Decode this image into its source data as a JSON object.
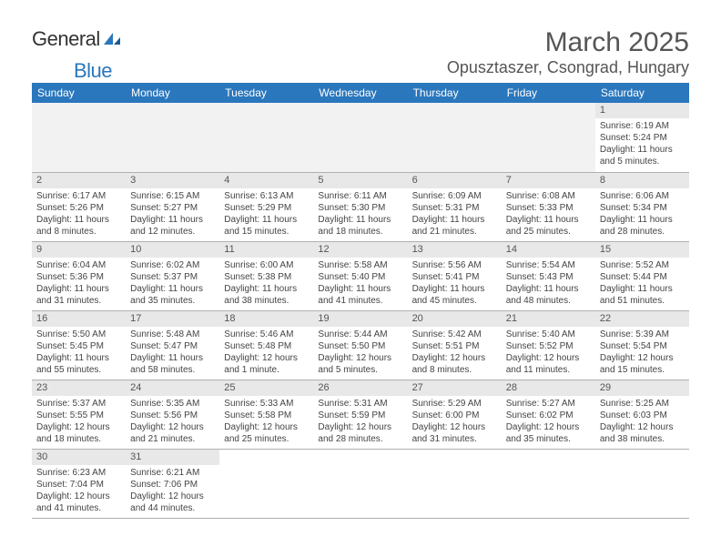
{
  "brand_general": "General",
  "brand_blue": "Blue",
  "title": "March 2025",
  "location": "Opusztaszer, Csongrad, Hungary",
  "header_bg": "#2a77bd",
  "weekdays": [
    "Sunday",
    "Monday",
    "Tuesday",
    "Wednesday",
    "Thursday",
    "Friday",
    "Saturday"
  ],
  "rows": [
    [
      null,
      null,
      null,
      null,
      null,
      null,
      {
        "n": "1",
        "sr": "Sunrise: 6:19 AM",
        "ss": "Sunset: 5:24 PM",
        "dl": "Daylight: 11 hours and 5 minutes."
      }
    ],
    [
      {
        "n": "2",
        "sr": "Sunrise: 6:17 AM",
        "ss": "Sunset: 5:26 PM",
        "dl": "Daylight: 11 hours and 8 minutes."
      },
      {
        "n": "3",
        "sr": "Sunrise: 6:15 AM",
        "ss": "Sunset: 5:27 PM",
        "dl": "Daylight: 11 hours and 12 minutes."
      },
      {
        "n": "4",
        "sr": "Sunrise: 6:13 AM",
        "ss": "Sunset: 5:29 PM",
        "dl": "Daylight: 11 hours and 15 minutes."
      },
      {
        "n": "5",
        "sr": "Sunrise: 6:11 AM",
        "ss": "Sunset: 5:30 PM",
        "dl": "Daylight: 11 hours and 18 minutes."
      },
      {
        "n": "6",
        "sr": "Sunrise: 6:09 AM",
        "ss": "Sunset: 5:31 PM",
        "dl": "Daylight: 11 hours and 21 minutes."
      },
      {
        "n": "7",
        "sr": "Sunrise: 6:08 AM",
        "ss": "Sunset: 5:33 PM",
        "dl": "Daylight: 11 hours and 25 minutes."
      },
      {
        "n": "8",
        "sr": "Sunrise: 6:06 AM",
        "ss": "Sunset: 5:34 PM",
        "dl": "Daylight: 11 hours and 28 minutes."
      }
    ],
    [
      {
        "n": "9",
        "sr": "Sunrise: 6:04 AM",
        "ss": "Sunset: 5:36 PM",
        "dl": "Daylight: 11 hours and 31 minutes."
      },
      {
        "n": "10",
        "sr": "Sunrise: 6:02 AM",
        "ss": "Sunset: 5:37 PM",
        "dl": "Daylight: 11 hours and 35 minutes."
      },
      {
        "n": "11",
        "sr": "Sunrise: 6:00 AM",
        "ss": "Sunset: 5:38 PM",
        "dl": "Daylight: 11 hours and 38 minutes."
      },
      {
        "n": "12",
        "sr": "Sunrise: 5:58 AM",
        "ss": "Sunset: 5:40 PM",
        "dl": "Daylight: 11 hours and 41 minutes."
      },
      {
        "n": "13",
        "sr": "Sunrise: 5:56 AM",
        "ss": "Sunset: 5:41 PM",
        "dl": "Daylight: 11 hours and 45 minutes."
      },
      {
        "n": "14",
        "sr": "Sunrise: 5:54 AM",
        "ss": "Sunset: 5:43 PM",
        "dl": "Daylight: 11 hours and 48 minutes."
      },
      {
        "n": "15",
        "sr": "Sunrise: 5:52 AM",
        "ss": "Sunset: 5:44 PM",
        "dl": "Daylight: 11 hours and 51 minutes."
      }
    ],
    [
      {
        "n": "16",
        "sr": "Sunrise: 5:50 AM",
        "ss": "Sunset: 5:45 PM",
        "dl": "Daylight: 11 hours and 55 minutes."
      },
      {
        "n": "17",
        "sr": "Sunrise: 5:48 AM",
        "ss": "Sunset: 5:47 PM",
        "dl": "Daylight: 11 hours and 58 minutes."
      },
      {
        "n": "18",
        "sr": "Sunrise: 5:46 AM",
        "ss": "Sunset: 5:48 PM",
        "dl": "Daylight: 12 hours and 1 minute."
      },
      {
        "n": "19",
        "sr": "Sunrise: 5:44 AM",
        "ss": "Sunset: 5:50 PM",
        "dl": "Daylight: 12 hours and 5 minutes."
      },
      {
        "n": "20",
        "sr": "Sunrise: 5:42 AM",
        "ss": "Sunset: 5:51 PM",
        "dl": "Daylight: 12 hours and 8 minutes."
      },
      {
        "n": "21",
        "sr": "Sunrise: 5:40 AM",
        "ss": "Sunset: 5:52 PM",
        "dl": "Daylight: 12 hours and 11 minutes."
      },
      {
        "n": "22",
        "sr": "Sunrise: 5:39 AM",
        "ss": "Sunset: 5:54 PM",
        "dl": "Daylight: 12 hours and 15 minutes."
      }
    ],
    [
      {
        "n": "23",
        "sr": "Sunrise: 5:37 AM",
        "ss": "Sunset: 5:55 PM",
        "dl": "Daylight: 12 hours and 18 minutes."
      },
      {
        "n": "24",
        "sr": "Sunrise: 5:35 AM",
        "ss": "Sunset: 5:56 PM",
        "dl": "Daylight: 12 hours and 21 minutes."
      },
      {
        "n": "25",
        "sr": "Sunrise: 5:33 AM",
        "ss": "Sunset: 5:58 PM",
        "dl": "Daylight: 12 hours and 25 minutes."
      },
      {
        "n": "26",
        "sr": "Sunrise: 5:31 AM",
        "ss": "Sunset: 5:59 PM",
        "dl": "Daylight: 12 hours and 28 minutes."
      },
      {
        "n": "27",
        "sr": "Sunrise: 5:29 AM",
        "ss": "Sunset: 6:00 PM",
        "dl": "Daylight: 12 hours and 31 minutes."
      },
      {
        "n": "28",
        "sr": "Sunrise: 5:27 AM",
        "ss": "Sunset: 6:02 PM",
        "dl": "Daylight: 12 hours and 35 minutes."
      },
      {
        "n": "29",
        "sr": "Sunrise: 5:25 AM",
        "ss": "Sunset: 6:03 PM",
        "dl": "Daylight: 12 hours and 38 minutes."
      }
    ],
    [
      {
        "n": "30",
        "sr": "Sunrise: 6:23 AM",
        "ss": "Sunset: 7:04 PM",
        "dl": "Daylight: 12 hours and 41 minutes."
      },
      {
        "n": "31",
        "sr": "Sunrise: 6:21 AM",
        "ss": "Sunset: 7:06 PM",
        "dl": "Daylight: 12 hours and 44 minutes."
      },
      null,
      null,
      null,
      null,
      null
    ]
  ]
}
